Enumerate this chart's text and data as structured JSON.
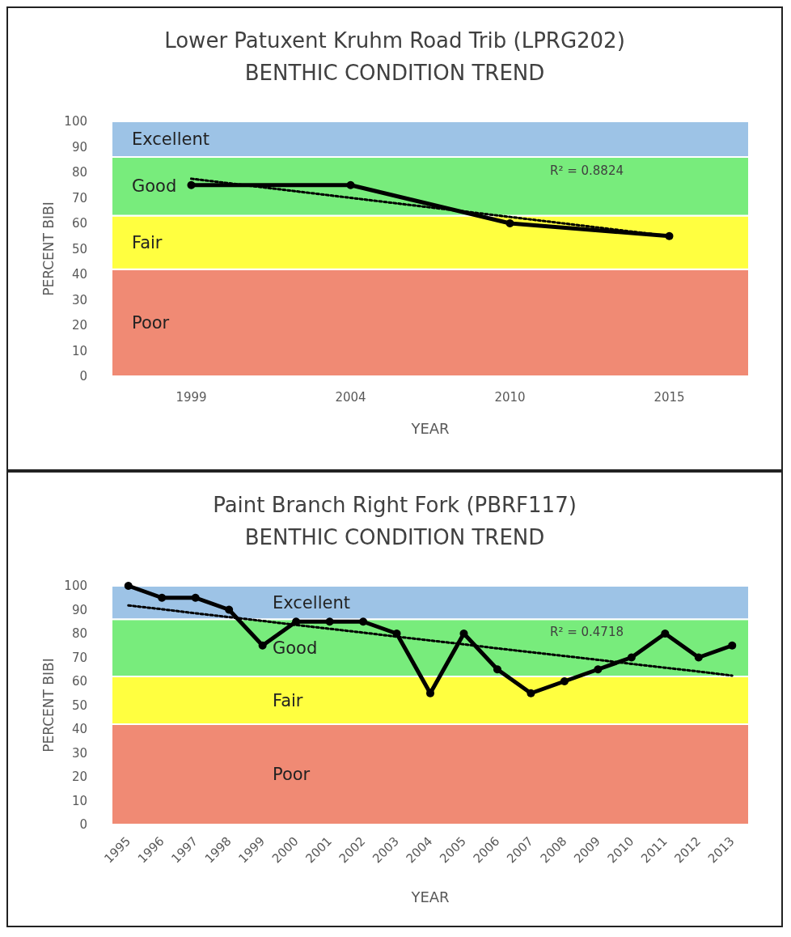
{
  "chart_data": [
    {
      "type": "line",
      "title": "Lower Patuxent Kruhm Road Trib (LPRG202)",
      "subtitle": "BENTHIC CONDITION TREND",
      "xlabel": "YEAR",
      "ylabel": "PERCENT BIBI",
      "categories": [
        "1999",
        "2004",
        "2010",
        "2015"
      ],
      "series": [
        {
          "color": "#000000",
          "values": [
            75,
            75,
            60,
            55
          ]
        },
        {
          "type": "line",
          "values": [
            77.5,
            70,
            62.5,
            55
          ],
          "color": "#000000",
          "line_style": "dotted",
          "marker": "none"
        }
      ],
      "ylim": [
        0,
        100
      ],
      "yticks": [
        0,
        10,
        20,
        30,
        40,
        50,
        60,
        70,
        80,
        90,
        100
      ],
      "marker": "circle",
      "line_style": "solid",
      "bands": [
        {
          "axis": "y",
          "from": 0,
          "to": 42,
          "label": "Poor",
          "color": "#f08a74"
        },
        {
          "axis": "y",
          "from": 42,
          "to": 63,
          "label": "Fair",
          "color": "#ffff40"
        },
        {
          "axis": "y",
          "from": 63,
          "to": 86,
          "label": "Good",
          "color": "#78ec7c"
        },
        {
          "axis": "y",
          "from": 86,
          "to": 100,
          "label": "Excellent",
          "color": "#9dc3e6"
        }
      ],
      "annotations": [
        "R² = 0.8824"
      ]
    },
    {
      "type": "line",
      "title": "Paint Branch Right Fork (PBRF117)",
      "subtitle": "BENTHIC CONDITION TREND",
      "xlabel": "YEAR",
      "ylabel": "PERCENT BIBI",
      "categories": [
        "1995",
        "1996",
        "1997",
        "1998",
        "1999",
        "2000",
        "2001",
        "2002",
        "2003",
        "2004",
        "2005",
        "2006",
        "2007",
        "2008",
        "2009",
        "2010",
        "2011",
        "2012",
        "2013"
      ],
      "series": [
        {
          "color": "#000000",
          "values": [
            100,
            95,
            95,
            90,
            75,
            85,
            85,
            85,
            80,
            55,
            80,
            65,
            55,
            60,
            65,
            70,
            80,
            70,
            75
          ]
        },
        {
          "type": "line",
          "values": [
            91.8,
            90.2,
            88.5,
            86.9,
            85.3,
            83.6,
            82.0,
            80.4,
            78.7,
            77.1,
            75.5,
            73.8,
            72.2,
            70.6,
            69.0,
            67.3,
            65.7,
            64.1,
            62.4
          ],
          "color": "#000000",
          "line_style": "dotted",
          "marker": "none"
        }
      ],
      "ylim": [
        0,
        100
      ],
      "yticks": [
        0,
        10,
        20,
        30,
        40,
        50,
        60,
        70,
        80,
        90,
        100
      ],
      "marker": "circle",
      "line_style": "solid",
      "bands": [
        {
          "axis": "y",
          "from": 0,
          "to": 42,
          "label": "Poor",
          "color": "#f08a74"
        },
        {
          "axis": "y",
          "from": 42,
          "to": 62,
          "label": "Fair",
          "color": "#ffff40"
        },
        {
          "axis": "y",
          "from": 62,
          "to": 86,
          "label": "Good",
          "color": "#78ec7c"
        },
        {
          "axis": "y",
          "from": 86,
          "to": 100,
          "label": "Excellent",
          "color": "#9dc3e6"
        }
      ],
      "annotations": [
        "R² = 0.4718"
      ]
    }
  ]
}
